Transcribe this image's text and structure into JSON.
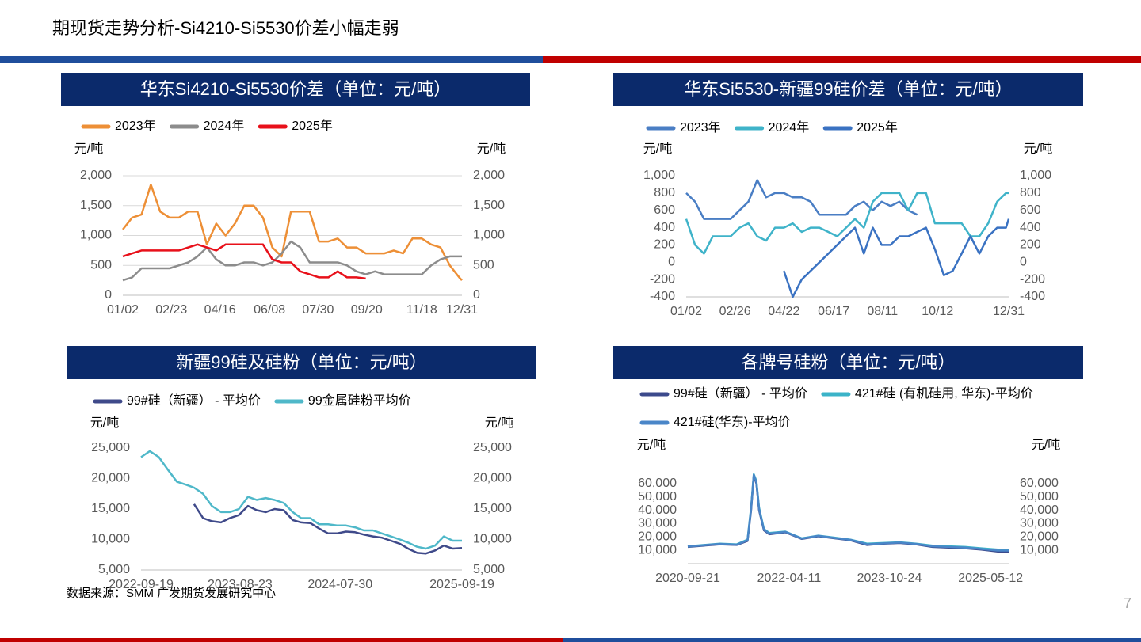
{
  "header": {
    "title": "期现货走势分析-Si4210-Si5530价差小幅走弱"
  },
  "chart_data": [
    {
      "type": "line",
      "title": "华东Si4210-Si5530价差（单位：元/吨）",
      "y_label": "元/吨",
      "y2_label": "元/吨",
      "grid": true,
      "x": [
        "01/02",
        "01/12",
        "01/22",
        "02/01",
        "02/11",
        "02/21",
        "03/03",
        "03/13",
        "03/23",
        "04/02",
        "04/12",
        "04/22",
        "05/02",
        "05/12",
        "05/22",
        "06/01",
        "06/11",
        "06/21",
        "07/01",
        "07/11",
        "07/21",
        "07/31",
        "08/10",
        "08/20",
        "08/30",
        "09/09",
        "09/19",
        "09/29",
        "10/09",
        "10/19",
        "10/29",
        "11/08",
        "11/18",
        "11/28",
        "12/08",
        "12/18",
        "12/28",
        "12/31"
      ],
      "xlim": [
        "01/02",
        "12/31"
      ],
      "xticks": [
        "01/02",
        "02/23",
        "04/16",
        "06/08",
        "07/30",
        "09/20",
        "11/18",
        "12/31"
      ],
      "ylim": [
        0,
        2000
      ],
      "yticks": [
        0,
        500,
        {
          "value": 1000,
          "label": "1,000"
        },
        {
          "value": 1500,
          "label": "1,500"
        },
        {
          "value": 2000,
          "label": "2,000"
        }
      ],
      "y2lim": [
        0,
        2000
      ],
      "y2ticks": [
        0,
        500,
        {
          "value": 1000,
          "label": "1,000"
        },
        {
          "value": 1500,
          "label": "1,500"
        },
        {
          "value": 2000,
          "label": "2,000"
        }
      ],
      "series": [
        {
          "name": "2023年",
          "color": "#ed8f36",
          "values": [
            1100,
            1300,
            1350,
            1850,
            1400,
            1300,
            1300,
            1400,
            1400,
            850,
            1200,
            1000,
            1200,
            1500,
            1500,
            1300,
            800,
            650,
            1400,
            1400,
            1400,
            900,
            900,
            950,
            800,
            800,
            700,
            700,
            700,
            750,
            700,
            950,
            950,
            850,
            800,
            500,
            300,
            250
          ]
        },
        {
          "name": "2024年",
          "color": "#8c8c8c",
          "values": [
            250,
            300,
            450,
            450,
            450,
            450,
            500,
            550,
            650,
            800,
            600,
            500,
            500,
            550,
            550,
            500,
            550,
            700,
            900,
            800,
            550,
            550,
            550,
            550,
            500,
            400,
            350,
            400,
            350,
            350,
            350,
            350,
            350,
            500,
            600,
            650,
            650,
            650
          ]
        },
        {
          "name": "2025年",
          "color": "#e8101a",
          "values": [
            650,
            700,
            750,
            750,
            750,
            750,
            750,
            800,
            850,
            800,
            750,
            850,
            850,
            850,
            850,
            850,
            600,
            550,
            550,
            400,
            350,
            300,
            300,
            400,
            300,
            300,
            280,
            null,
            null,
            null,
            null,
            null,
            null,
            null,
            null,
            null,
            null,
            null
          ]
        }
      ]
    },
    {
      "type": "line",
      "title": "华东Si5530-新疆99硅价差（单位：元/吨）",
      "y_label": "元/吨",
      "y2_label": "元/吨",
      "grid": false,
      "x": [
        "01/02",
        "01/12",
        "01/22",
        "02/01",
        "02/11",
        "02/21",
        "03/03",
        "03/13",
        "03/23",
        "04/02",
        "04/12",
        "04/22",
        "05/02",
        "05/12",
        "05/22",
        "06/01",
        "06/11",
        "06/21",
        "07/01",
        "07/11",
        "07/21",
        "07/31",
        "08/10",
        "08/20",
        "08/30",
        "09/09",
        "09/19",
        "09/29",
        "10/09",
        "10/19",
        "10/29",
        "11/08",
        "11/18",
        "11/28",
        "12/08",
        "12/18",
        "12/28",
        "12/31"
      ],
      "xlim": [
        "01/02",
        "12/31"
      ],
      "xticks": [
        "01/02",
        "02/26",
        "04/22",
        "06/17",
        "08/11",
        "10/12",
        "12/31"
      ],
      "ylim": [
        -400,
        1000
      ],
      "yticks": [
        -400,
        -200,
        0,
        200,
        400,
        600,
        800,
        {
          "value": 1000,
          "label": "1,000"
        }
      ],
      "y2lim": [
        -400,
        1000
      ],
      "y2ticks": [
        -400,
        -200,
        0,
        200,
        400,
        600,
        800,
        {
          "value": 1000,
          "label": "1,000"
        }
      ],
      "series": [
        {
          "name": "2023年",
          "color": "#4a7ec4",
          "values": [
            800,
            700,
            500,
            500,
            500,
            500,
            600,
            700,
            950,
            750,
            800,
            800,
            750,
            750,
            700,
            550,
            550,
            550,
            550,
            650,
            700,
            600,
            700,
            650,
            700,
            600,
            550,
            null,
            null,
            null,
            null,
            null,
            null,
            null,
            null,
            null,
            null,
            null
          ]
        },
        {
          "name": "2024年",
          "color": "#3fb3c9",
          "values": [
            500,
            200,
            100,
            300,
            300,
            300,
            400,
            450,
            300,
            250,
            400,
            400,
            450,
            350,
            400,
            400,
            350,
            300,
            400,
            500,
            400,
            700,
            800,
            800,
            800,
            600,
            800,
            800,
            450,
            450,
            450,
            450,
            300,
            300,
            450,
            700,
            800,
            800
          ]
        },
        {
          "name": "2025年",
          "color": "#3a72c2",
          "values": [
            null,
            null,
            null,
            null,
            null,
            null,
            null,
            null,
            null,
            null,
            null,
            -100,
            -400,
            -200,
            -100,
            0,
            100,
            200,
            300,
            400,
            100,
            400,
            200,
            200,
            300,
            300,
            350,
            400,
            150,
            -150,
            -100,
            100,
            300,
            100,
            300,
            400,
            400,
            500
          ]
        }
      ]
    },
    {
      "type": "line",
      "title": "新疆99硅及硅粉（单位：元/吨）",
      "y_label": "元/吨",
      "y2_label": "元/吨",
      "grid": false,
      "x": [
        "2022-09-19",
        "2022-10-19",
        "2022-11-19",
        "2022-12-19",
        "2023-01-19",
        "2023-02-19",
        "2023-03-19",
        "2023-04-19",
        "2023-05-19",
        "2023-06-19",
        "2023-07-19",
        "2023-08-19",
        "2023-09-19",
        "2023-10-19",
        "2023-11-19",
        "2023-12-19",
        "2024-01-19",
        "2024-02-19",
        "2024-03-19",
        "2024-04-19",
        "2024-05-19",
        "2024-06-19",
        "2024-07-19",
        "2024-08-19",
        "2024-09-19",
        "2024-10-19",
        "2024-11-19",
        "2024-12-19",
        "2025-01-19",
        "2025-02-19",
        "2025-03-19",
        "2025-04-19",
        "2025-05-19",
        "2025-06-19",
        "2025-07-19",
        "2025-08-19",
        "2025-09-19"
      ],
      "xlim": [
        "2022-09-19",
        "2025-09-19"
      ],
      "xticks": [
        "2022-09-19",
        "2023-08-23",
        "2024-07-30",
        "2025-09-19"
      ],
      "ylim": [
        5000,
        25000
      ],
      "yticks": [
        {
          "value": 5000,
          "label": "5,000"
        },
        {
          "value": 10000,
          "label": "10,000"
        },
        {
          "value": 15000,
          "label": "15,000"
        },
        {
          "value": 20000,
          "label": "20,000"
        },
        {
          "value": 25000,
          "label": "25,000"
        }
      ],
      "y2lim": [
        5000,
        25000
      ],
      "y2ticks": [
        {
          "value": 5000,
          "label": "5,000"
        },
        {
          "value": 10000,
          "label": "10,000"
        },
        {
          "value": 15000,
          "label": "15,000"
        },
        {
          "value": 20000,
          "label": "20,000"
        },
        {
          "value": 25000,
          "label": "25,000"
        }
      ],
      "series": [
        {
          "name": "99#硅（新疆） - 平均价",
          "color": "#3f4a8a",
          "values": [
            null,
            null,
            null,
            null,
            null,
            null,
            15800,
            13500,
            13000,
            12800,
            13500,
            14000,
            15500,
            14800,
            14500,
            15000,
            14800,
            13200,
            12800,
            12700,
            11800,
            11000,
            11000,
            11300,
            11200,
            10800,
            10500,
            10300,
            9800,
            9300,
            8500,
            7800,
            7700,
            8200,
            9000,
            8500,
            8600
          ]
        },
        {
          "name": "99金属硅粉平均价",
          "color": "#4fb8c9",
          "values": [
            23500,
            24500,
            23500,
            21500,
            19500,
            19000,
            18500,
            17500,
            15500,
            14500,
            14500,
            15000,
            17000,
            16500,
            16800,
            16500,
            16000,
            14500,
            13500,
            13500,
            12500,
            12500,
            12300,
            12300,
            12000,
            11500,
            11500,
            11000,
            10500,
            10000,
            9500,
            8800,
            8500,
            9000,
            10500,
            9800,
            9800
          ]
        }
      ]
    },
    {
      "type": "line",
      "title": "各牌号硅粉（单位：元/吨）",
      "y_label": "元/吨",
      "y2_label": "元/吨",
      "grid": false,
      "x": [
        "2020-09-21",
        "2020-12-21",
        "2021-03-21",
        "2021-06-21",
        "2021-08-21",
        "2021-09-10",
        "2021-09-25",
        "2021-10-10",
        "2021-10-25",
        "2021-11-21",
        "2021-12-21",
        "2022-03-21",
        "2022-06-21",
        "2022-09-21",
        "2022-12-21",
        "2023-03-21",
        "2023-06-21",
        "2023-09-21",
        "2023-12-21",
        "2024-03-21",
        "2024-06-21",
        "2024-09-21",
        "2024-12-21",
        "2025-03-21",
        "2025-06-21",
        "2025-08-21"
      ],
      "xlim": [
        "2020-09-21",
        "2025-08-21"
      ],
      "xticks": [
        "2020-09-21",
        "2022-04-11",
        "2023-10-24",
        "2025-05-12"
      ],
      "ylim": [
        0,
        70000
      ],
      "yticks": [
        {
          "value": 10000,
          "label": "10,000"
        },
        {
          "value": 20000,
          "label": "20,000"
        },
        {
          "value": 30000,
          "label": "30,000"
        },
        {
          "value": 40000,
          "label": "40,000"
        },
        {
          "value": 50000,
          "label": "50,000"
        },
        {
          "value": 60000,
          "label": "60,000"
        }
      ],
      "y2lim": [
        0,
        70000
      ],
      "y2ticks": [
        {
          "value": 10000,
          "label": "10,000"
        },
        {
          "value": 20000,
          "label": "20,000"
        },
        {
          "value": 30000,
          "label": "30,000"
        },
        {
          "value": 40000,
          "label": "40,000"
        },
        {
          "value": 50000,
          "label": "50,000"
        },
        {
          "value": 60000,
          "label": "60,000"
        }
      ],
      "series": [
        {
          "name": "99#硅（新疆） - 平均价",
          "color": "#3c4a8c",
          "values": [
            12500,
            13500,
            14500,
            14000,
            17000,
            40000,
            66000,
            60000,
            40000,
            25000,
            22000,
            23500,
            18500,
            20500,
            19000,
            17500,
            14000,
            15000,
            15500,
            14500,
            12500,
            12000,
            11500,
            10500,
            9000,
            9000
          ]
        },
        {
          "name": "421#硅 (有机硅用, 华东)-平均价",
          "color": "#3bb3c8",
          "values": [
            13000,
            14000,
            15000,
            14500,
            18000,
            42000,
            67000,
            62000,
            42000,
            26000,
            23000,
            24000,
            19000,
            21000,
            19500,
            18000,
            15000,
            15500,
            16000,
            15000,
            13500,
            13000,
            12500,
            11500,
            10500,
            10500
          ]
        },
        {
          "name": "421#硅(华东)-平均价",
          "color": "#4a86c8",
          "values": [
            12800,
            13800,
            14800,
            14200,
            17500,
            41000,
            66500,
            61000,
            41000,
            25500,
            22500,
            23800,
            18800,
            20800,
            19200,
            17800,
            14500,
            15200,
            15800,
            14800,
            13000,
            12500,
            12000,
            11000,
            9800,
            9800
          ]
        }
      ]
    }
  ],
  "source": "数据来源：SMM 广发期货发展研究中心",
  "page_number": "7"
}
